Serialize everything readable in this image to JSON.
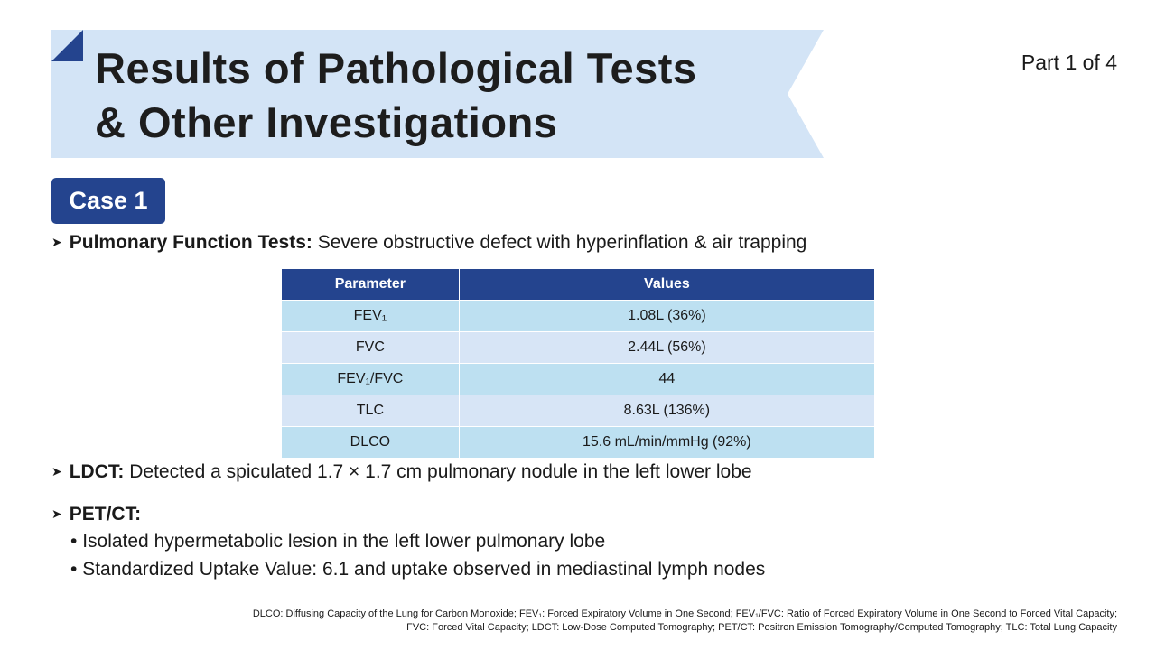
{
  "header": {
    "title_lines": [
      "Results of Pathological Tests",
      "& Other Investigations"
    ],
    "part": "Part 1 of 4"
  },
  "case_label": "Case 1",
  "pft": {
    "label": "Pulmonary Function Tests:",
    "text": "Severe obstructive defect with hyperinflation & air trapping"
  },
  "table": {
    "headers": [
      "Parameter",
      "Values"
    ],
    "rows": [
      [
        "FEV₁",
        "1.08L (36%)"
      ],
      [
        "FVC",
        "2.44L (56%)"
      ],
      [
        "FEV₁/FVC",
        "44"
      ],
      [
        "TLC",
        "8.63L (136%)"
      ],
      [
        "DLCO",
        "15.6 mL/min/mmHg (92%)"
      ]
    ]
  },
  "ldct": {
    "label": "LDCT:",
    "text": "Detected a spiculated 1.7 × 1.7 cm pulmonary nodule in the left lower lobe"
  },
  "petct": {
    "label": "PET/CT:",
    "items": [
      "Isolated hypermetabolic lesion in the left lower pulmonary lobe",
      "Standardized Uptake Value: 6.1 and uptake observed in mediastinal lymph nodes"
    ]
  },
  "footnote": [
    "DLCO: Diffusing Capacity of the Lung for Carbon Monoxide; FEV₁: Forced Expiratory Volume in One Second; FEV₁/FVC: Ratio of Forced Expiratory Volume in One Second to Forced Vital Capacity;",
    "FVC: Forced Vital Capacity; LDCT: Low-Dose Computed Tomography; PET/CT: Positron Emission Tomography/Computed Tomography; TLC: Total Lung Capacity"
  ]
}
